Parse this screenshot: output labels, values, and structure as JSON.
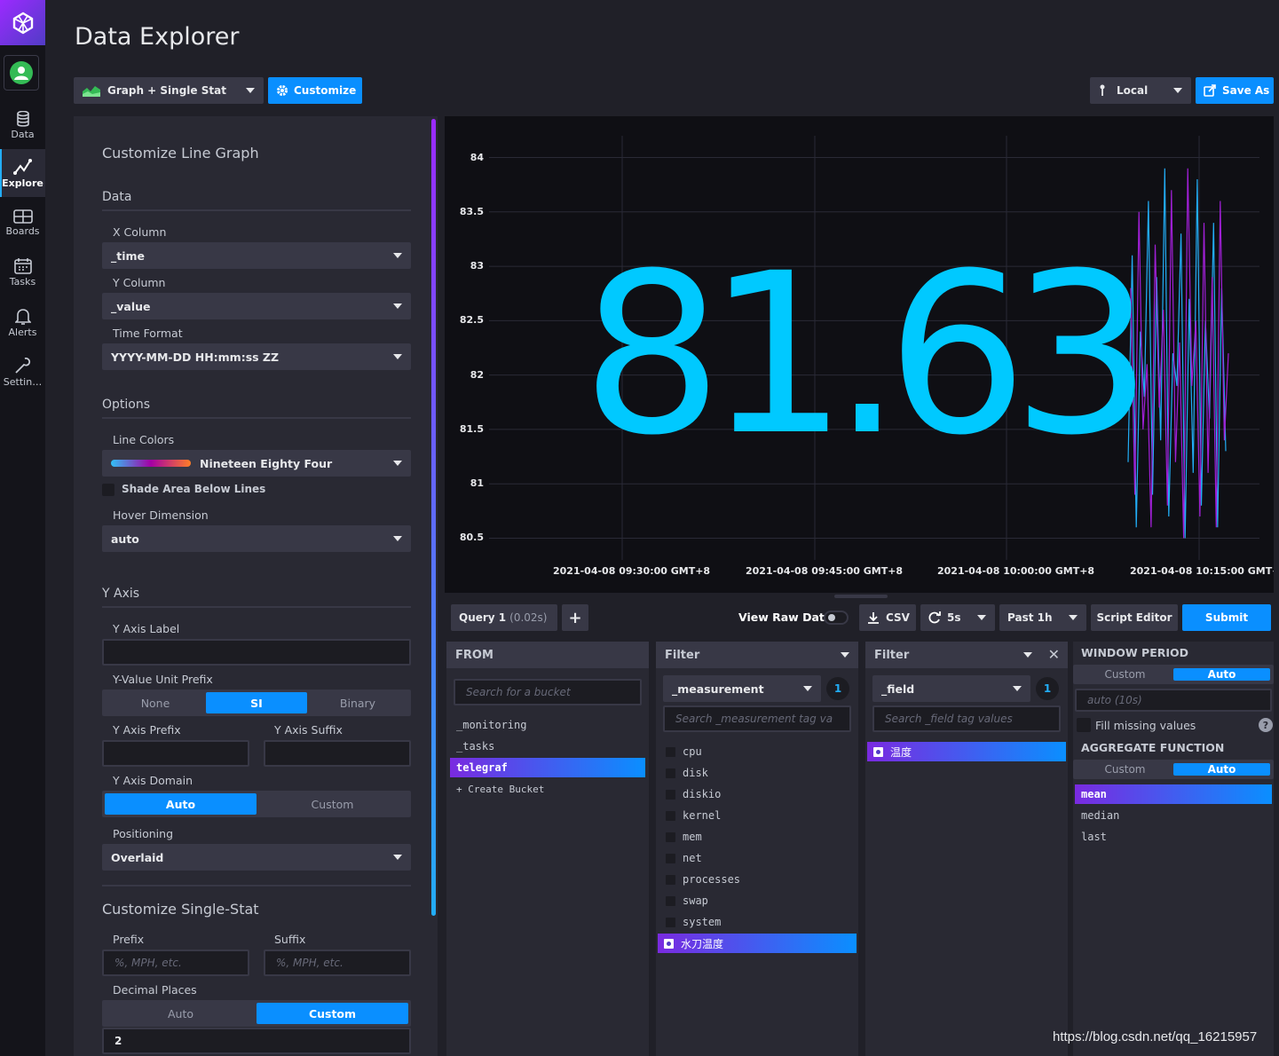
{
  "nav": {
    "items": [
      {
        "label": "Data",
        "icon": "database-icon"
      },
      {
        "label": "Explore",
        "icon": "graph-icon"
      },
      {
        "label": "Boards",
        "icon": "dashboard-icon"
      },
      {
        "label": "Tasks",
        "icon": "calendar-icon"
      },
      {
        "label": "Alerts",
        "icon": "bell-icon"
      },
      {
        "label": "Settin…",
        "icon": "wrench-icon"
      }
    ]
  },
  "header": {
    "title": "Data Explorer",
    "view_type": "Graph + Single Stat",
    "customize_label": "Customize",
    "timezone": "Local",
    "save_as_label": "Save As"
  },
  "customize": {
    "title": "Customize Line Graph",
    "data_section": "Data",
    "x_column_label": "X Column",
    "x_column": "_time",
    "y_column_label": "Y Column",
    "y_column": "_value",
    "time_format_label": "Time Format",
    "time_format": "YYYY-MM-DD HH:mm:ss ZZ",
    "options_section": "Options",
    "line_colors_label": "Line Colors",
    "line_colors": "Nineteen Eighty Four",
    "shade_label": "Shade Area Below Lines",
    "hover_label": "Hover Dimension",
    "hover": "auto",
    "y_axis_section": "Y Axis",
    "y_axis_label_label": "Y Axis Label",
    "unit_prefix_label": "Y-Value Unit Prefix",
    "unit_prefix_options": [
      "None",
      "SI",
      "Binary"
    ],
    "y_prefix_label": "Y Axis Prefix",
    "y_suffix_label": "Y Axis Suffix",
    "y_domain_label": "Y Axis Domain",
    "y_domain_options": [
      "Auto",
      "Custom"
    ],
    "positioning_label": "Positioning",
    "positioning": "Overlaid",
    "single_stat_title": "Customize Single-Stat",
    "prefix_label": "Prefix",
    "suffix_label": "Suffix",
    "prefix_placeholder": "%, MPH, etc.",
    "suffix_placeholder": "%, MPH, etc.",
    "decimal_label": "Decimal Places",
    "decimal_options": [
      "Auto",
      "Custom"
    ],
    "decimal_value": "2"
  },
  "graph": {
    "single_stat": "81.63",
    "colors": {
      "stat": "#00c9ff",
      "line_a": "#22adf6",
      "line_b": "#a01fd6"
    }
  },
  "chart_data": {
    "type": "line",
    "y_ticks": [
      "84",
      "83.5",
      "83",
      "82.5",
      "82",
      "81.5",
      "81",
      "80.5"
    ],
    "ylim": [
      80.3,
      84.2
    ],
    "x_ticks": [
      "2021-04-08 09:30:00 GMT+8",
      "2021-04-08 09:45:00 GMT+8",
      "2021-04-08 10:00:00 GMT+8",
      "2021-04-08 10:15:00 GMT+"
    ],
    "grid": true,
    "series": [
      {
        "color": "#22adf6",
        "values": [
          81.2,
          83.1,
          80.6,
          82.4,
          81.8,
          83.6,
          80.9,
          82.9,
          81.4,
          83.9,
          80.7,
          82.2,
          81.9,
          83.3,
          80.5,
          82.7,
          81.1,
          83.8,
          80.8,
          82.5,
          81.6,
          83.4,
          80.6,
          82.8,
          81.3
        ]
      },
      {
        "color": "#a01fd6",
        "values": [
          82.8,
          80.9,
          83.5,
          81.5,
          82.1,
          80.6,
          83.2,
          81.7,
          82.6,
          80.8,
          83.7,
          81.2,
          82.3,
          80.5,
          83.9,
          81.9,
          82.5,
          80.7,
          83.4,
          81.1,
          82.9,
          80.6,
          83.6,
          81.4,
          82.2
        ]
      }
    ]
  },
  "query": {
    "tab_label": "Query 1",
    "tab_time": "(0.02s)",
    "raw_data_label": "View Raw Data",
    "csv_label": "CSV",
    "refresh_label": "5s",
    "range_label": "Past 1h",
    "script_editor_label": "Script Editor",
    "submit_label": "Submit"
  },
  "from": {
    "title": "FROM",
    "search_placeholder": "Search for a bucket",
    "buckets": [
      "_monitoring",
      "_tasks",
      "telegraf",
      "+ Create Bucket"
    ]
  },
  "filter1": {
    "title": "Filter",
    "key": "_measurement",
    "count": "1",
    "search_placeholder": "Search _measurement tag va",
    "items": [
      "cpu",
      "disk",
      "diskio",
      "kernel",
      "mem",
      "net",
      "processes",
      "swap",
      "system",
      "水刀温度"
    ]
  },
  "filter2": {
    "title": "Filter",
    "key": "_field",
    "count": "1",
    "search_placeholder": "Search _field tag values",
    "items": [
      "温度"
    ]
  },
  "aggregate": {
    "window_title": "WINDOW PERIOD",
    "window_options": [
      "Custom",
      "Auto"
    ],
    "window_value": "auto (10s)",
    "fill_label": "Fill missing values",
    "function_title": "AGGREGATE FUNCTION",
    "function_options": [
      "Custom",
      "Auto"
    ],
    "functions": [
      "mean",
      "median",
      "last"
    ]
  },
  "watermark": "https://blog.csdn.net/qq_16215957"
}
